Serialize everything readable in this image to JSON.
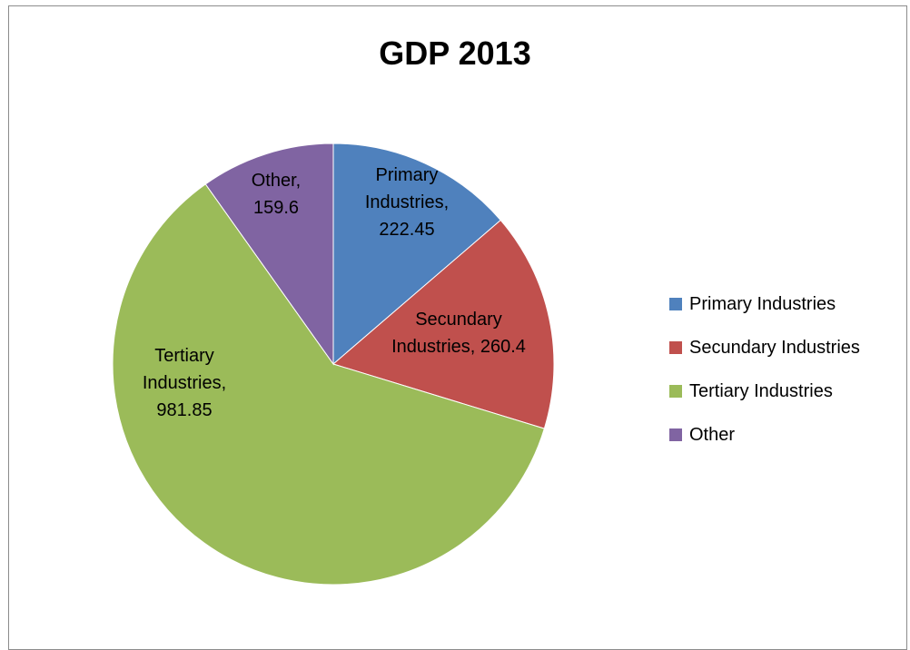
{
  "chart_data": {
    "type": "pie",
    "title": "GDP 2013",
    "slices": [
      {
        "name": "Primary Industries",
        "value": 222.45,
        "color": "#4F81BD",
        "label_lines": [
          "Primary",
          "Industries,",
          "222.45"
        ]
      },
      {
        "name": "Secundary Industries",
        "value": 260.4,
        "color": "#C0504D",
        "label_lines": [
          "Secundary",
          "Industries, 260.4"
        ]
      },
      {
        "name": "Tertiary Industries",
        "value": 981.85,
        "color": "#9BBB59",
        "label_lines": [
          "Tertiary",
          "Industries,",
          "981.85"
        ]
      },
      {
        "name": "Other",
        "value": 159.6,
        "color": "#8064A2",
        "label_lines": [
          "Other,",
          "159.6"
        ]
      }
    ],
    "legend_position": "right"
  }
}
